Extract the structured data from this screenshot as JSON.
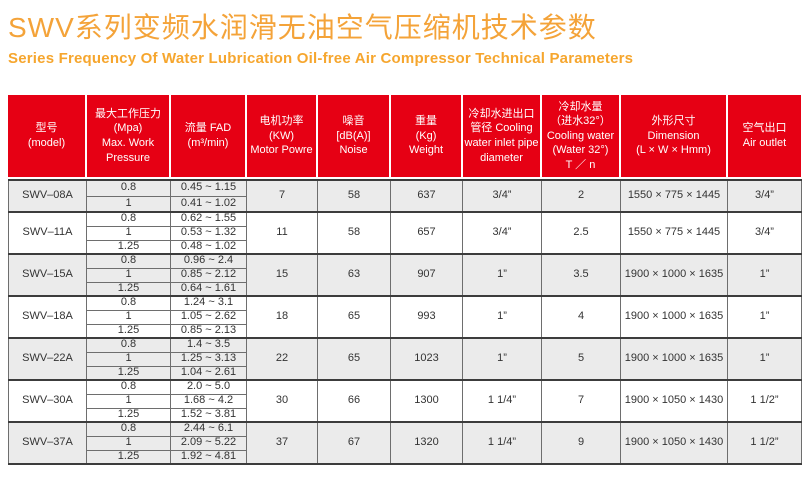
{
  "page": {
    "title_zh": "SWV系列变频水润滑无油空气压缩机技术参数",
    "title_en": "Series Frequency Of Water Lubrication Oil-free Air Compressor Technical Parameters"
  },
  "colors": {
    "title_orange": "#F4A339",
    "header_red": "#E60014",
    "row_alt_gray": "#EBEBEB",
    "border_dark": "#3C3C3C",
    "border_light": "#6E6E6E"
  },
  "table": {
    "headers": [
      {
        "id": "model",
        "lines": [
          "型号",
          "(model)"
        ]
      },
      {
        "id": "pressure",
        "lines": [
          "最大工作压力",
          "(Mpa)",
          "Max. Work",
          "Pressure"
        ]
      },
      {
        "id": "fad",
        "lines": [
          "流量 FAD",
          "(m³/min)"
        ]
      },
      {
        "id": "motor",
        "lines": [
          "电机功率",
          "(KW)",
          "Motor Powre"
        ]
      },
      {
        "id": "noise",
        "lines": [
          "噪音",
          "[dB(A)]",
          "Noise"
        ]
      },
      {
        "id": "weight",
        "lines": [
          "重量",
          "(Kg)",
          "Weight"
        ]
      },
      {
        "id": "pipe",
        "lines": [
          "冷却水进出口",
          "管径 Cooling",
          "water inlet pipe",
          "diameter"
        ]
      },
      {
        "id": "cooling",
        "lines": [
          "冷却水量",
          "（进水32°）",
          "Cooling water",
          "(Water 32°)",
          "T ／ n"
        ]
      },
      {
        "id": "dimension",
        "lines": [
          "外形尺寸",
          "Dimension",
          "(L × W × Hmm)"
        ]
      },
      {
        "id": "outlet",
        "lines": [
          "空气出口",
          "Air outlet"
        ]
      }
    ],
    "groups": [
      {
        "model": "SWV–08A",
        "variants": [
          {
            "pressure": "0.8",
            "fad": "0.45 ~ 1.15"
          },
          {
            "pressure": "1",
            "fad": "0.41 ~ 1.02"
          }
        ],
        "motor": "7",
        "noise": "58",
        "weight": "637",
        "pipe": "3/4”",
        "cooling": "2",
        "dimension": "1550 × 775 × 1445",
        "outlet": "3/4”"
      },
      {
        "model": "SWV–11A",
        "variants": [
          {
            "pressure": "0.8",
            "fad": "0.62 ~ 1.55"
          },
          {
            "pressure": "1",
            "fad": "0.53 ~ 1.32"
          },
          {
            "pressure": "1.25",
            "fad": "0.48 ~ 1.02"
          }
        ],
        "motor": "11",
        "noise": "58",
        "weight": "657",
        "pipe": "3/4”",
        "cooling": "2.5",
        "dimension": "1550 × 775 × 1445",
        "outlet": "3/4”"
      },
      {
        "model": "SWV–15A",
        "variants": [
          {
            "pressure": "0.8",
            "fad": "0.96 ~ 2.4"
          },
          {
            "pressure": "1",
            "fad": "0.85 ~ 2.12"
          },
          {
            "pressure": "1.25",
            "fad": "0.64 ~ 1.61"
          }
        ],
        "motor": "15",
        "noise": "63",
        "weight": "907",
        "pipe": "1”",
        "cooling": "3.5",
        "dimension": "1900 × 1000 × 1635",
        "outlet": "1”"
      },
      {
        "model": "SWV–18A",
        "variants": [
          {
            "pressure": "0.8",
            "fad": "1.24 ~ 3.1"
          },
          {
            "pressure": "1",
            "fad": "1.05 ~ 2.62"
          },
          {
            "pressure": "1.25",
            "fad": "0.85 ~ 2.13"
          }
        ],
        "motor": "18",
        "noise": "65",
        "weight": "993",
        "pipe": "1”",
        "cooling": "4",
        "dimension": "1900 × 1000 × 1635",
        "outlet": "1”"
      },
      {
        "model": "SWV–22A",
        "variants": [
          {
            "pressure": "0.8",
            "fad": "1.4 ~ 3.5"
          },
          {
            "pressure": "1",
            "fad": "1.25 ~ 3.13"
          },
          {
            "pressure": "1.25",
            "fad": "1.04 ~ 2.61"
          }
        ],
        "motor": "22",
        "noise": "65",
        "weight": "1023",
        "pipe": "1”",
        "cooling": "5",
        "dimension": "1900 × 1000 × 1635",
        "outlet": "1”"
      },
      {
        "model": "SWV–30A",
        "variants": [
          {
            "pressure": "0.8",
            "fad": "2.0 ~ 5.0"
          },
          {
            "pressure": "1",
            "fad": "1.68 ~ 4.2"
          },
          {
            "pressure": "1.25",
            "fad": "1.52 ~ 3.81"
          }
        ],
        "motor": "30",
        "noise": "66",
        "weight": "1300",
        "pipe": "1 1/4”",
        "cooling": "7",
        "dimension": "1900 × 1050 × 1430",
        "outlet": "1 1/2”"
      },
      {
        "model": "SWV–37A",
        "variants": [
          {
            "pressure": "0.8",
            "fad": "2.44 ~ 6.1"
          },
          {
            "pressure": "1",
            "fad": "2.09 ~ 5.22"
          },
          {
            "pressure": "1.25",
            "fad": "1.92 ~ 4.81"
          }
        ],
        "motor": "37",
        "noise": "67",
        "weight": "1320",
        "pipe": "1 1/4”",
        "cooling": "9",
        "dimension": "1900 × 1050 × 1430",
        "outlet": "1 1/2”"
      }
    ]
  }
}
